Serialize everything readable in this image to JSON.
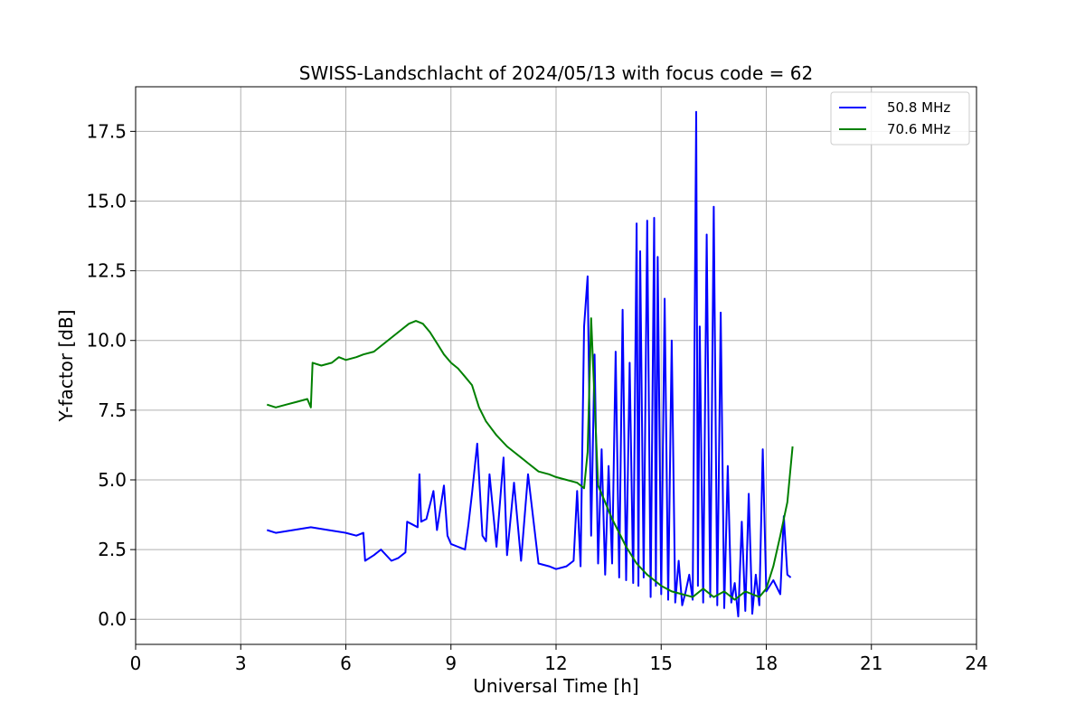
{
  "chart_data": {
    "type": "line",
    "title": "SWISS-Landschlacht of 2024/05/13 with focus code = 62",
    "xlabel": "Universal Time [h]",
    "ylabel": "Y-factor [dB]",
    "xlim": [
      0,
      24
    ],
    "ylim": [
      -0.9,
      19.1
    ],
    "xticks": [
      0,
      3,
      6,
      9,
      12,
      15,
      18,
      21,
      24
    ],
    "xtick_labels": [
      "0",
      "3",
      "6",
      "9",
      "12",
      "15",
      "18",
      "21",
      "24"
    ],
    "yticks": [
      0.0,
      2.5,
      5.0,
      7.5,
      10.0,
      12.5,
      15.0,
      17.5
    ],
    "ytick_labels": [
      "0.0",
      "2.5",
      "5.0",
      "7.5",
      "10.0",
      "12.5",
      "15.0",
      "17.5"
    ],
    "grid": true,
    "legend_position": "top-right",
    "series": [
      {
        "name": "50.8 MHz",
        "color": "#0000ff",
        "x": [
          3.75,
          4.0,
          4.5,
          5.0,
          5.5,
          6.0,
          6.3,
          6.5,
          6.55,
          6.8,
          7.0,
          7.3,
          7.5,
          7.7,
          7.75,
          7.9,
          8.05,
          8.1,
          8.15,
          8.3,
          8.5,
          8.6,
          8.8,
          8.9,
          9.0,
          9.2,
          9.4,
          9.5,
          9.6,
          9.75,
          9.9,
          10.0,
          10.1,
          10.3,
          10.5,
          10.6,
          10.8,
          11.0,
          11.2,
          11.5,
          11.8,
          12.0,
          12.3,
          12.5,
          12.6,
          12.7,
          12.8,
          12.9,
          13.0,
          13.1,
          13.2,
          13.3,
          13.4,
          13.5,
          13.6,
          13.7,
          13.8,
          13.9,
          14.0,
          14.1,
          14.2,
          14.3,
          14.35,
          14.4,
          14.5,
          14.6,
          14.7,
          14.8,
          14.85,
          14.9,
          15.0,
          15.1,
          15.2,
          15.3,
          15.4,
          15.5,
          15.6,
          15.7,
          15.8,
          15.9,
          16.0,
          16.05,
          16.1,
          16.2,
          16.3,
          16.4,
          16.5,
          16.6,
          16.7,
          16.8,
          16.9,
          17.0,
          17.1,
          17.2,
          17.3,
          17.4,
          17.5,
          17.6,
          17.7,
          17.8,
          17.9,
          18.0,
          18.2,
          18.4,
          18.5,
          18.6,
          18.7
        ],
        "y": [
          3.2,
          3.1,
          3.2,
          3.3,
          3.2,
          3.1,
          3.0,
          3.1,
          2.1,
          2.3,
          2.5,
          2.1,
          2.2,
          2.4,
          3.5,
          3.4,
          3.3,
          5.2,
          3.5,
          3.6,
          4.6,
          3.2,
          4.8,
          3.0,
          2.7,
          2.6,
          2.5,
          3.4,
          4.5,
          6.3,
          3.0,
          2.8,
          5.2,
          2.6,
          5.8,
          2.3,
          4.9,
          2.1,
          5.2,
          2.0,
          1.9,
          1.8,
          1.9,
          2.1,
          4.6,
          1.9,
          10.5,
          12.3,
          3.0,
          9.5,
          2.0,
          6.1,
          1.6,
          5.5,
          2.0,
          9.6,
          1.5,
          11.1,
          1.4,
          9.2,
          1.3,
          14.2,
          1.2,
          13.2,
          1.5,
          14.3,
          0.8,
          14.4,
          1.2,
          13.0,
          0.9,
          11.5,
          0.7,
          10.0,
          0.6,
          2.1,
          0.5,
          1.0,
          1.6,
          0.7,
          18.2,
          1.2,
          10.5,
          0.6,
          13.8,
          0.8,
          14.8,
          0.5,
          11.0,
          0.4,
          5.5,
          0.6,
          1.3,
          0.1,
          3.5,
          0.3,
          4.5,
          0.2,
          1.6,
          0.5,
          6.1,
          1.0,
          1.4,
          0.9,
          3.7,
          1.6,
          1.5
        ],
        "stroke_width": 2
      },
      {
        "name": "70.6 MHz",
        "color": "#008000",
        "x": [
          3.75,
          4.0,
          4.3,
          4.6,
          4.9,
          5.0,
          5.05,
          5.3,
          5.6,
          5.8,
          6.0,
          6.3,
          6.5,
          6.8,
          7.0,
          7.3,
          7.6,
          7.8,
          8.0,
          8.2,
          8.4,
          8.6,
          8.8,
          9.0,
          9.2,
          9.4,
          9.6,
          9.8,
          10.0,
          10.3,
          10.6,
          10.8,
          11.0,
          11.2,
          11.5,
          11.8,
          12.0,
          12.3,
          12.6,
          12.8,
          12.9,
          13.0,
          13.2,
          13.4,
          13.6,
          13.8,
          14.0,
          14.3,
          14.6,
          15.0,
          15.3,
          15.6,
          15.9,
          16.2,
          16.5,
          16.8,
          17.1,
          17.4,
          17.6,
          17.8,
          18.0,
          18.2,
          18.4,
          18.6,
          18.75
        ],
        "y": [
          7.7,
          7.6,
          7.7,
          7.8,
          7.9,
          7.6,
          9.2,
          9.1,
          9.2,
          9.4,
          9.3,
          9.4,
          9.5,
          9.6,
          9.8,
          10.1,
          10.4,
          10.6,
          10.7,
          10.6,
          10.3,
          9.9,
          9.5,
          9.2,
          9.0,
          8.7,
          8.4,
          7.6,
          7.1,
          6.6,
          6.2,
          6.0,
          5.8,
          5.6,
          5.3,
          5.2,
          5.1,
          5.0,
          4.9,
          4.7,
          6.0,
          10.8,
          4.8,
          4.2,
          3.6,
          3.1,
          2.6,
          2.0,
          1.6,
          1.2,
          1.0,
          0.9,
          0.8,
          1.1,
          0.8,
          1.0,
          0.7,
          1.0,
          0.9,
          0.8,
          1.1,
          1.9,
          3.0,
          4.2,
          6.2
        ],
        "stroke_width": 2
      }
    ]
  }
}
